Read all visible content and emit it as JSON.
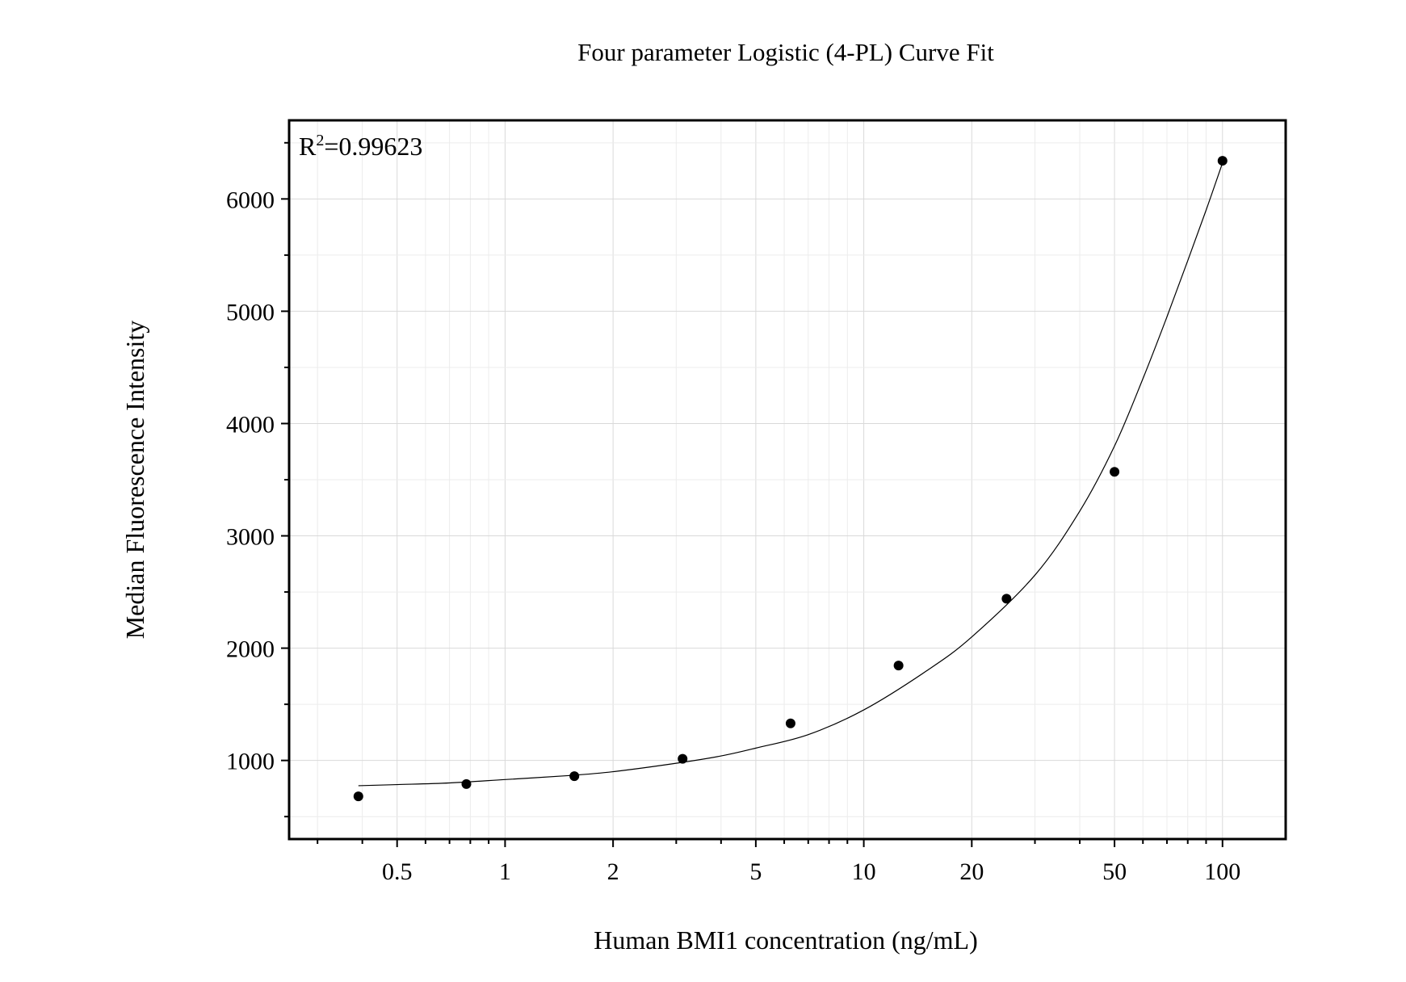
{
  "chart_data": {
    "type": "scatter",
    "title": "Four parameter Logistic (4-PL) Curve Fit",
    "xlabel": "Human BMI1 concentration (ng/mL)",
    "ylabel": "Median Fluorescence Intensity",
    "x_scale": "log",
    "xlim": [
      0.25,
      150
    ],
    "ylim": [
      300,
      6700
    ],
    "x_ticks": [
      0.5,
      1,
      2,
      5,
      10,
      20,
      50,
      100
    ],
    "x_tick_labels": [
      "0.5",
      "1",
      "2",
      "5",
      "10",
      "20",
      "50",
      "100"
    ],
    "y_ticks": [
      1000,
      2000,
      3000,
      4000,
      5000,
      6000
    ],
    "y_tick_labels": [
      "1000",
      "2000",
      "3000",
      "4000",
      "5000",
      "6000"
    ],
    "grid": true,
    "annotation": {
      "base": "R",
      "sup": "2",
      "rest": "=0.99623",
      "position": "top-left"
    },
    "series": [
      {
        "type": "scatter",
        "x": [
          0.39,
          0.78,
          1.56,
          3.125,
          6.25,
          12.5,
          25,
          50,
          100
        ],
        "y": [
          680,
          790,
          860,
          1015,
          1330,
          1845,
          2440,
          3570,
          6340
        ]
      },
      {
        "type": "line",
        "fit": "4-PL",
        "x": [
          0.39,
          0.5,
          0.7,
          1,
          1.5,
          2,
          3,
          4,
          5,
          7,
          10,
          15,
          20,
          30,
          40,
          50,
          60,
          70,
          80,
          90,
          100
        ],
        "y": [
          775,
          785,
          800,
          830,
          865,
          900,
          975,
          1040,
          1110,
          1230,
          1450,
          1800,
          2100,
          2650,
          3220,
          3800,
          4400,
          4950,
          5450,
          5900,
          6320
        ]
      }
    ]
  }
}
